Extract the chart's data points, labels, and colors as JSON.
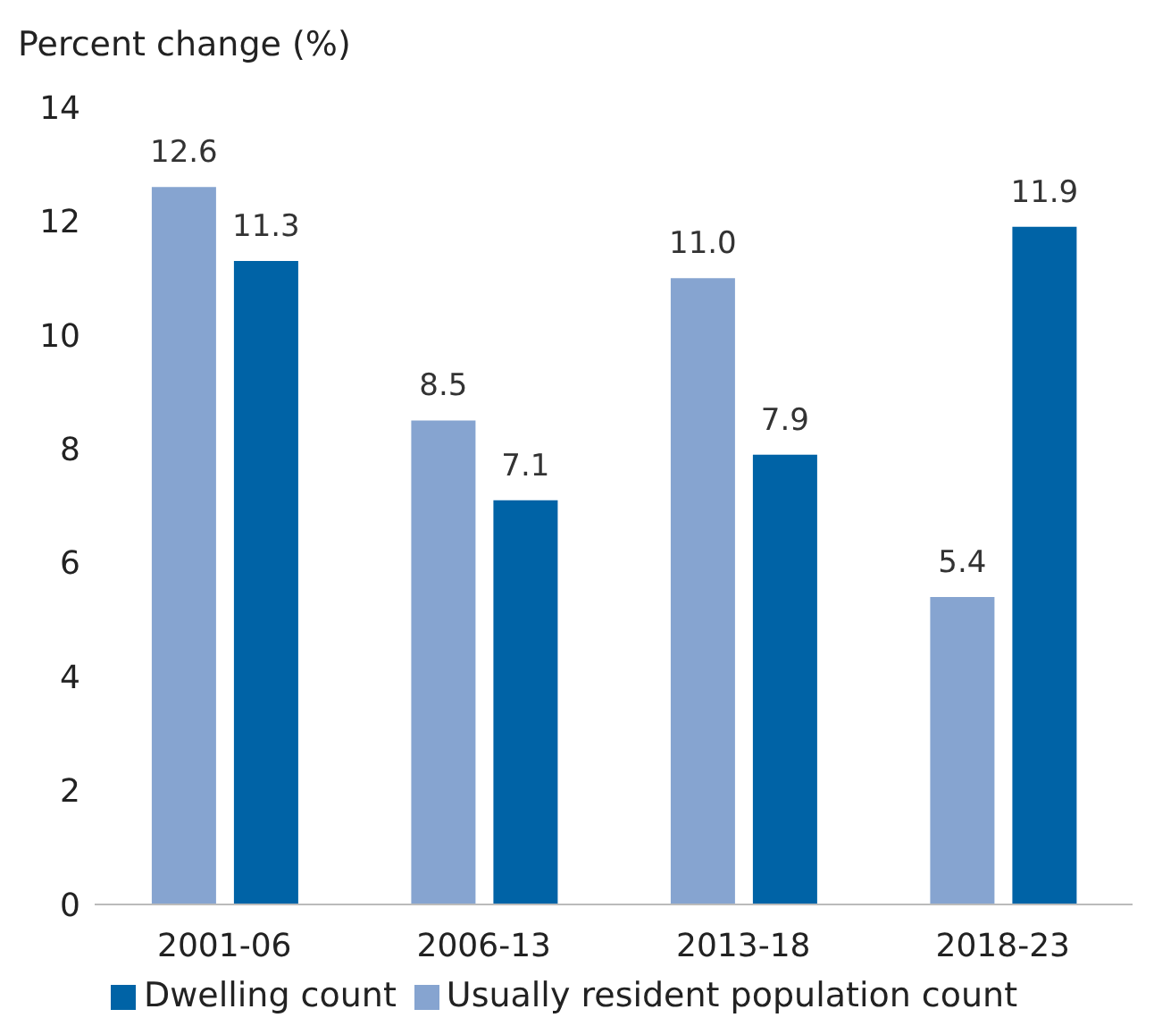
{
  "chart_data": {
    "type": "bar",
    "ylabel": "Percent change (%)",
    "categories": [
      "2001-06",
      "2006-13",
      "2013-18",
      "2018-23"
    ],
    "series": [
      {
        "name": "Usually resident population count",
        "color": "#86a4d0",
        "values": [
          12.6,
          8.5,
          11.0,
          5.4
        ],
        "value_labels": [
          "12.6",
          "8.5",
          "11.0",
          "5.4"
        ]
      },
      {
        "name": "Dwelling count",
        "color": "#0063a6",
        "values": [
          11.3,
          7.1,
          7.9,
          11.9
        ],
        "value_labels": [
          "11.3",
          "7.1",
          "7.9",
          "11.9"
        ]
      }
    ],
    "ylim": [
      0,
      14
    ],
    "yticks": [
      0,
      2,
      4,
      6,
      8,
      10,
      12,
      14
    ],
    "grid": false,
    "legend": "bottom"
  }
}
